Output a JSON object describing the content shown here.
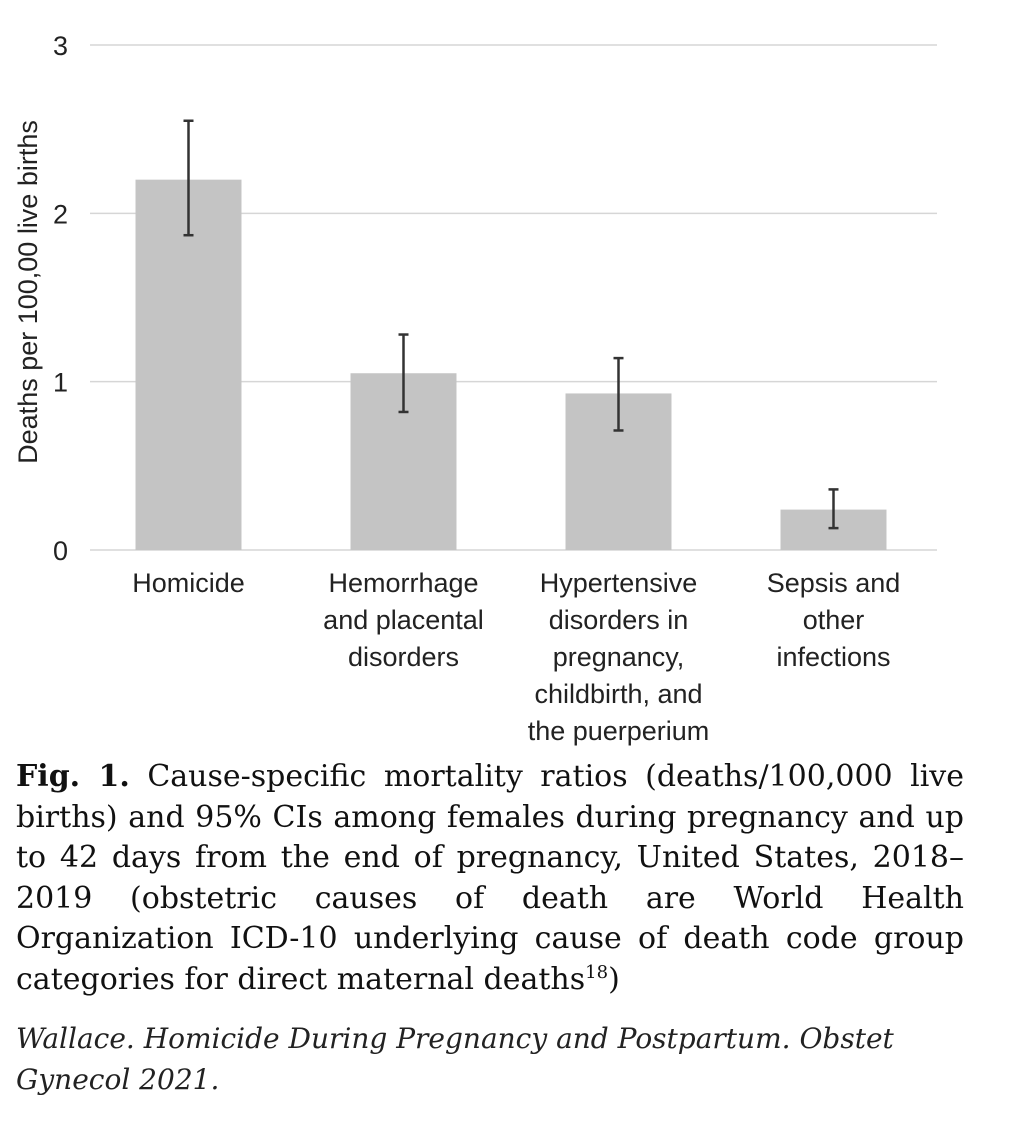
{
  "chart_data": {
    "type": "bar",
    "categories": [
      [
        "Homicide"
      ],
      [
        "Hemorrhage",
        "and placental",
        "disorders"
      ],
      [
        "Hypertensive",
        "disorders in",
        "pregnancy,",
        "childbirth, and",
        "the puerperium"
      ],
      [
        "Sepsis and",
        "other",
        "infections"
      ]
    ],
    "values": [
      2.2,
      1.05,
      0.93,
      0.24
    ],
    "ci_lower": [
      1.87,
      0.82,
      0.71,
      0.13
    ],
    "ci_upper": [
      2.55,
      1.28,
      1.14,
      0.36
    ],
    "xlabel": "",
    "ylabel": "Deaths per 100,00 live births",
    "ylim": [
      0,
      3
    ],
    "yticks": [
      0,
      1,
      2,
      3
    ],
    "grid": "horizontal",
    "bar_color": "#c4c4c4",
    "error_bar_color": "#333333",
    "grid_color": "#d6d6d6"
  },
  "caption": {
    "label": "Fig. 1.",
    "text": " Cause-specific mortality ratios (deaths/100,000 live births) and 95% CIs among females during pregnancy and up to 42 days from the end of pregnancy, United States, 2018–2019 (obstetric causes of death are World Health Organization ICD-10 underlying cause of death code group categories for direct maternal deaths",
    "superscript": "18",
    "closing": ")"
  },
  "source": "Wallace. Homicide During Pregnancy and Postpartum. Obstet Gynecol 2021."
}
